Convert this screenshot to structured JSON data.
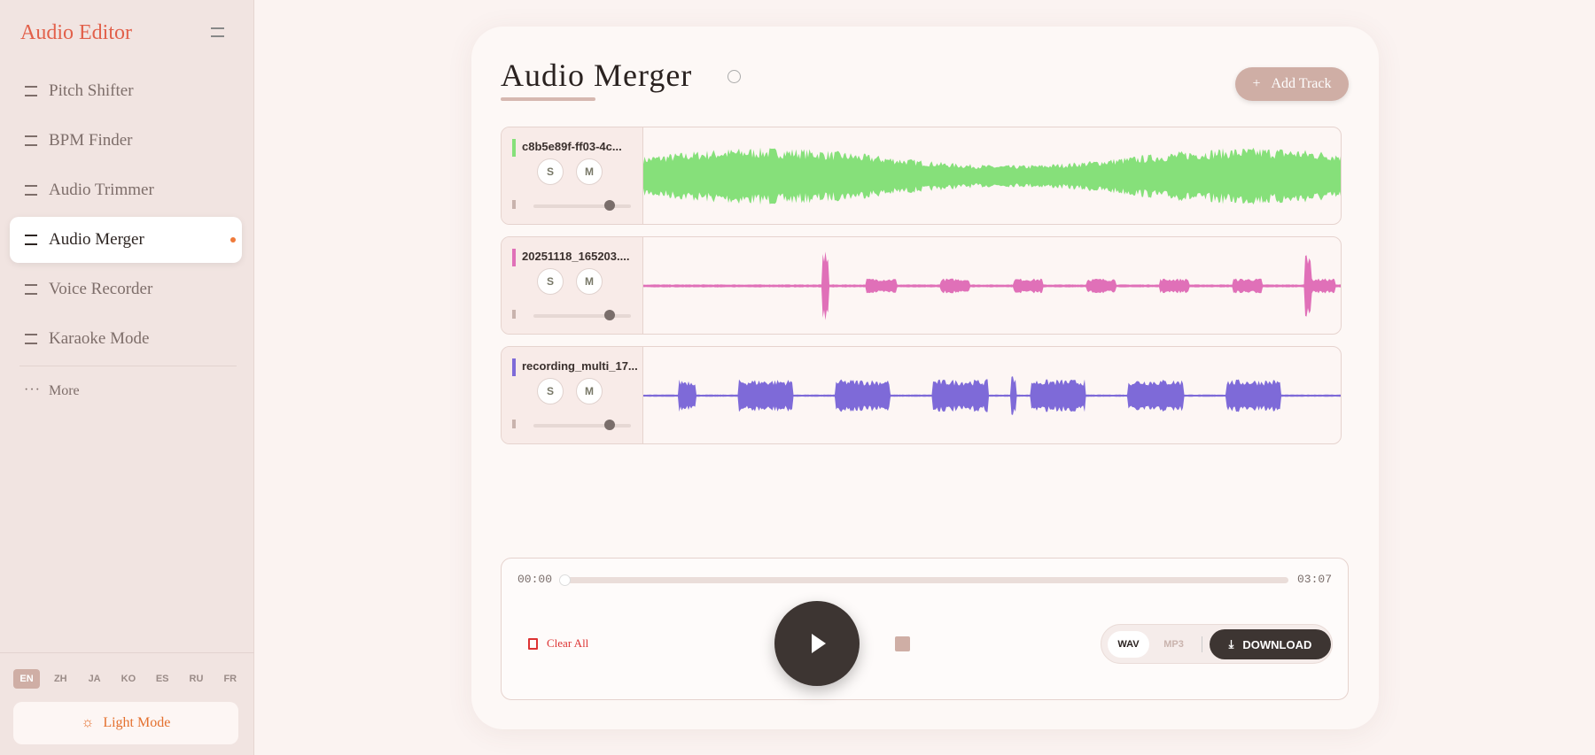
{
  "sidebar": {
    "title": "Audio Editor",
    "nav": [
      "Pitch Shifter",
      "BPM Finder",
      "Audio Trimmer",
      "Audio Merger",
      "Voice Recorder",
      "Karaoke Mode"
    ],
    "more": "More",
    "languages": [
      "EN",
      "ZH",
      "JA",
      "KO",
      "ES",
      "RU",
      "FR"
    ],
    "theme": "Light Mode"
  },
  "main": {
    "title": "Audio Merger",
    "add_track": "Add Track",
    "tracks": [
      {
        "name": "c8b5e89f-ff03-4c...",
        "solo": "S",
        "mute": "M"
      },
      {
        "name": "20251118_165203....",
        "solo": "S",
        "mute": "M"
      },
      {
        "name": "recording_multi_17...",
        "solo": "S",
        "mute": "M"
      }
    ],
    "player": {
      "current": "00:00",
      "total": "03:07",
      "clear": "Clear All",
      "formats": [
        "WAV",
        "MP3"
      ],
      "download": "DOWNLOAD"
    }
  }
}
